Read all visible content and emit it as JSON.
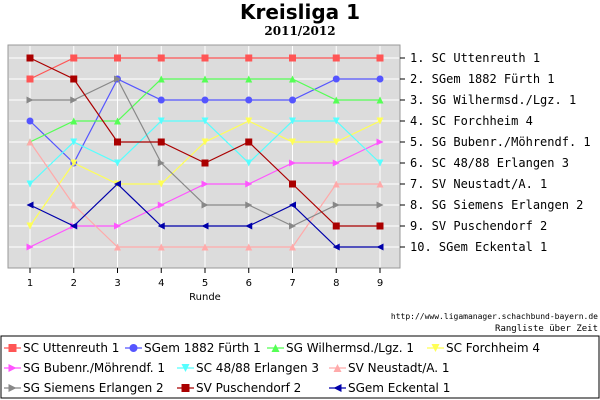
{
  "header": {
    "title": "Kreisliga 1",
    "subtitle": "2011/2012"
  },
  "footer": {
    "source_url": "http://www.ligamanager.schachbund-bayern.de",
    "caption": "Rangliste über Zeit"
  },
  "colors": {
    "plot_bg": "#dcdcdc",
    "grid": "#ffffff",
    "border": "#999999"
  },
  "chart_data": {
    "type": "line",
    "title": "Kreisliga 1",
    "subtitle": "2011/2012",
    "xlabel": "Runde",
    "ylabel": "",
    "x": [
      1,
      2,
      3,
      4,
      5,
      6,
      7,
      8,
      9
    ],
    "ylim": [
      1,
      10
    ],
    "y_inverted": true,
    "grid": true,
    "legend_position": "bottom",
    "y_tick_labels": [
      "1. SC Uttenreuth 1",
      "2. SGem 1882 Fürth 1",
      "3. SG Wilhermsd./Lgz. 1",
      "4. SC Forchheim 4",
      "5. SG Bubenr./Möhrendf. 1",
      "6. SC 48/88 Erlangen 3",
      "7. SV Neustadt/A. 1",
      "8. SG Siemens Erlangen 2",
      "9. SV Puschendorf 2",
      "10. SGem Eckental 1"
    ],
    "series": [
      {
        "name": "SC Uttenreuth 1",
        "color": "#ff5555",
        "marker": "square",
        "values": [
          2,
          1,
          1,
          1,
          1,
          1,
          1,
          1,
          1
        ]
      },
      {
        "name": "SGem 1882 Fürth 1",
        "color": "#5555ff",
        "marker": "circle",
        "values": [
          4,
          6,
          2,
          3,
          3,
          3,
          3,
          2,
          2
        ]
      },
      {
        "name": "SG Wilhermsd./Lgz. 1",
        "color": "#55ff55",
        "marker": "triangle-up",
        "values": [
          5,
          4,
          4,
          2,
          2,
          2,
          2,
          3,
          3
        ]
      },
      {
        "name": "SC Forchheim 4",
        "color": "#ffff55",
        "marker": "triangle-down",
        "values": [
          9,
          6,
          7,
          7,
          5,
          4,
          5,
          5,
          4
        ]
      },
      {
        "name": "SG Bubenr./Möhrendf. 1",
        "color": "#ff55ff",
        "marker": "triangle-right",
        "values": [
          10,
          9,
          9,
          8,
          7,
          7,
          6,
          6,
          5
        ]
      },
      {
        "name": "SC 48/88 Erlangen 3",
        "color": "#55ffff",
        "marker": "triangle-down",
        "values": [
          7,
          5,
          6,
          4,
          4,
          6,
          4,
          4,
          6
        ]
      },
      {
        "name": "SV Neustadt/A. 1",
        "color": "#ffaaaa",
        "marker": "triangle-up",
        "values": [
          5,
          8,
          10,
          10,
          10,
          10,
          10,
          7,
          7
        ]
      },
      {
        "name": "SG Siemens Erlangen 2",
        "color": "#888888",
        "marker": "triangle-right",
        "values": [
          3,
          3,
          2,
          6,
          8,
          8,
          9,
          8,
          8
        ]
      },
      {
        "name": "SV Puschendorf 2",
        "color": "#aa0000",
        "marker": "square",
        "values": [
          1,
          2,
          5,
          5,
          6,
          5,
          7,
          9,
          9
        ]
      },
      {
        "name": "SGem Eckental 1",
        "color": "#0000aa",
        "marker": "triangle-left",
        "values": [
          8,
          9,
          7,
          9,
          9,
          9,
          8,
          10,
          10
        ]
      }
    ]
  }
}
